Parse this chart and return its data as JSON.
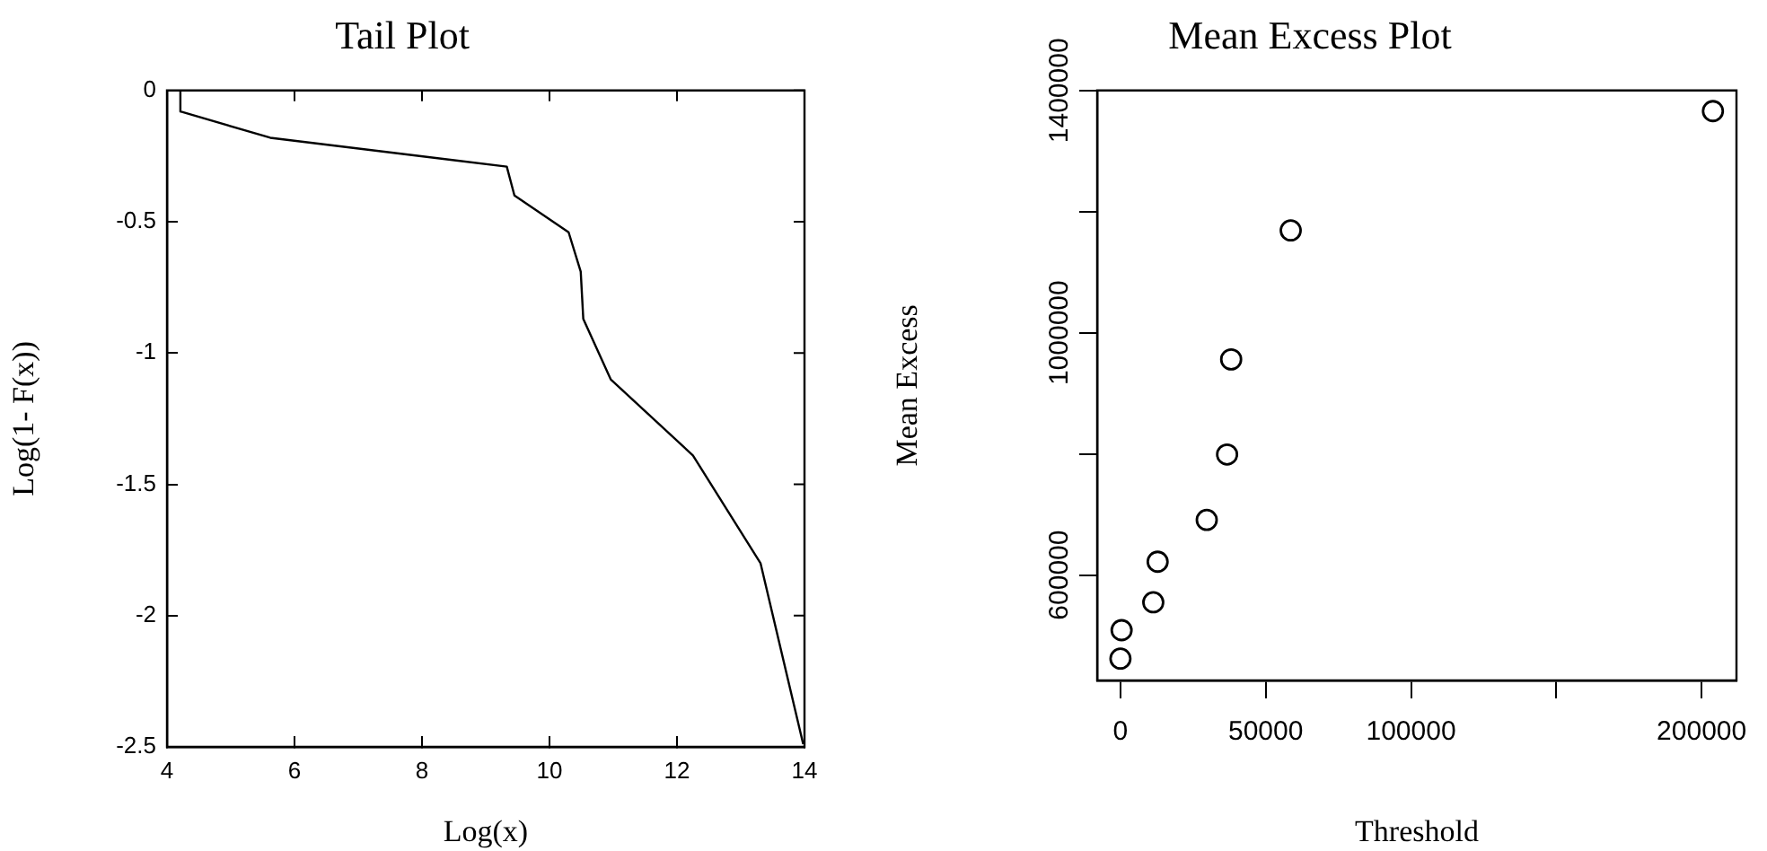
{
  "chart_data": [
    {
      "type": "line",
      "title": "Tail Plot",
      "xlabel": "Log(x)",
      "ylabel": "Log(1- F(x))",
      "color": "#000000",
      "marker": "none",
      "grid": false,
      "legend": false,
      "x": [
        4.21,
        4.21,
        5.62,
        9.33,
        9.45,
        10.3,
        10.49,
        10.53,
        10.96,
        12.25,
        13.31,
        13.98
      ],
      "values": [
        0,
        -0.08,
        -0.18,
        -0.29,
        -0.4,
        -0.54,
        -0.69,
        -0.87,
        -1.1,
        -1.39,
        -1.8,
        -2.49
      ],
      "xlim": [
        4,
        14
      ],
      "xticks": [
        4,
        6,
        8,
        10,
        12,
        14
      ],
      "ylim": [
        -2.5,
        0
      ],
      "yticks": [
        -2.5,
        -2,
        -1.5,
        -1,
        -0.5,
        0
      ]
    },
    {
      "type": "scatter",
      "title": "Mean Excess Plot",
      "xlabel": "Threshold",
      "ylabel": "Mean Excess",
      "color": "#000000",
      "marker": "circle",
      "grid": false,
      "legend": false,
      "x": [
        0,
        400,
        11300,
        12800,
        29700,
        36700,
        38100,
        58600,
        203900
      ],
      "values": [
        462000,
        509000,
        555000,
        622000,
        691000,
        799000,
        956000,
        1169000,
        1366000
      ],
      "xlim": [
        -8000,
        212000
      ],
      "xticks": [
        0,
        50000,
        100000,
        {
          "value": 150000,
          "label": null
        },
        200000
      ],
      "ylim": [
        426000,
        1400000
      ],
      "yticks": [
        600000,
        {
          "value": 800000,
          "label": null
        },
        1000000,
        {
          "value": 1200000,
          "label": null
        },
        1400000
      ]
    }
  ]
}
